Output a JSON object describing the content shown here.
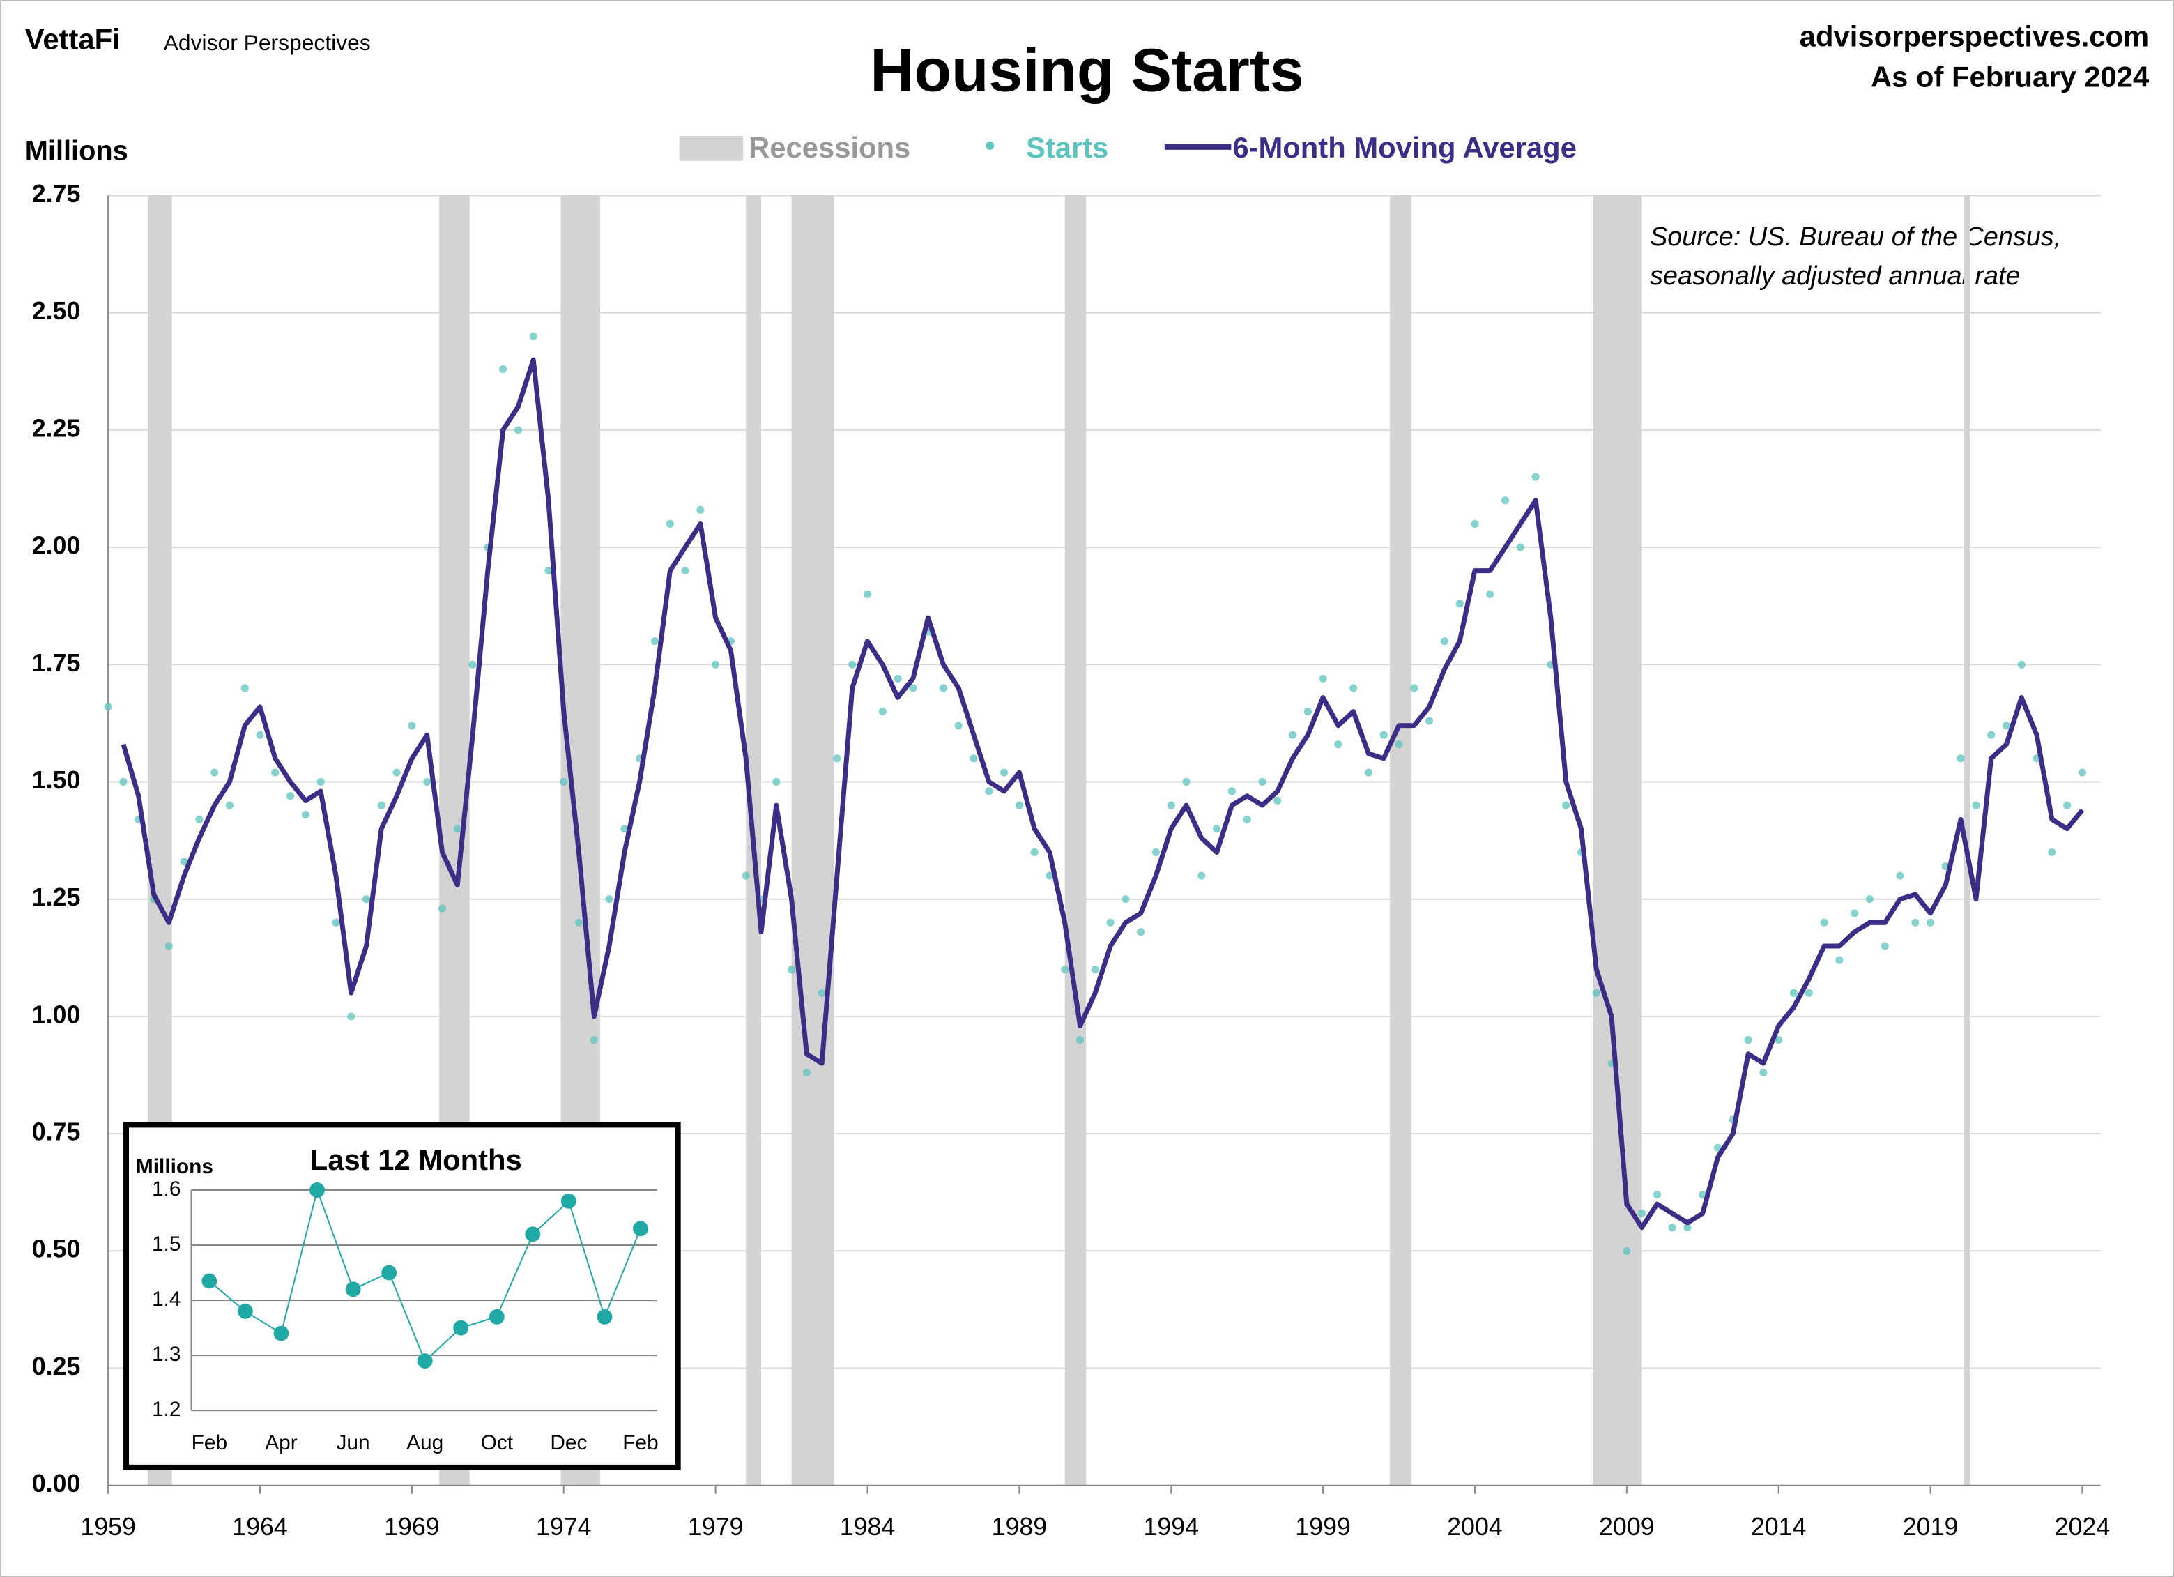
{
  "header": {
    "brand": "VettaFi",
    "brand_sub": "Advisor Perspectives",
    "site": "advisorperspectives.com",
    "as_of": "As of February 2024"
  },
  "chart_data": [
    {
      "type": "line",
      "title": "Housing Starts",
      "y_label": "Millions",
      "annotation": [
        "Source: US. Bureau of the Census,",
        "seasonally adjusted annual rate"
      ],
      "recessions_label": "Recessions",
      "recessions_color": "#d3d3d3",
      "recessions": [
        [
          1960.3,
          1961.1
        ],
        [
          1969.9,
          1970.9
        ],
        [
          1973.9,
          1975.2
        ],
        [
          1980.0,
          1980.5
        ],
        [
          1981.5,
          1982.9
        ],
        [
          1990.5,
          1991.2
        ],
        [
          2001.2,
          2001.9
        ],
        [
          2007.9,
          2009.5
        ],
        [
          2020.1,
          2020.3
        ]
      ],
      "xlim": [
        1959,
        2024.6
      ],
      "xticks": [
        1959,
        1964,
        1969,
        1974,
        1979,
        1984,
        1989,
        1994,
        1999,
        2004,
        2009,
        2014,
        2019,
        2024
      ],
      "ylim": [
        0,
        2.75
      ],
      "yticks": [
        {
          "value": 0,
          "label": "0.00"
        },
        0.25,
        {
          "value": 0.5,
          "label": "0.50"
        },
        0.75,
        {
          "value": 1,
          "label": "1.00"
        },
        1.25,
        {
          "value": 1.5,
          "label": "1.50"
        },
        1.75,
        {
          "value": 2,
          "label": "2.00"
        },
        2.25,
        {
          "value": 2.5,
          "label": "2.50"
        },
        2.75
      ],
      "grid": true,
      "x": [
        1959.0,
        1959.5,
        1960.0,
        1960.5,
        1961.0,
        1961.5,
        1962.0,
        1962.5,
        1963.0,
        1963.5,
        1964.0,
        1964.5,
        1965.0,
        1965.5,
        1966.0,
        1966.5,
        1967.0,
        1967.5,
        1968.0,
        1968.5,
        1969.0,
        1969.5,
        1970.0,
        1970.5,
        1971.0,
        1971.5,
        1972.0,
        1972.5,
        1973.0,
        1973.5,
        1974.0,
        1974.5,
        1975.0,
        1975.5,
        1976.0,
        1976.5,
        1977.0,
        1977.5,
        1978.0,
        1978.5,
        1979.0,
        1979.5,
        1980.0,
        1980.5,
        1981.0,
        1981.5,
        1982.0,
        1982.5,
        1983.0,
        1983.5,
        1984.0,
        1984.5,
        1985.0,
        1985.5,
        1986.0,
        1986.5,
        1987.0,
        1987.5,
        1988.0,
        1988.5,
        1989.0,
        1989.5,
        1990.0,
        1990.5,
        1991.0,
        1991.5,
        1992.0,
        1992.5,
        1993.0,
        1993.5,
        1994.0,
        1994.5,
        1995.0,
        1995.5,
        1996.0,
        1996.5,
        1997.0,
        1997.5,
        1998.0,
        1998.5,
        1999.0,
        1999.5,
        2000.0,
        2000.5,
        2001.0,
        2001.5,
        2002.0,
        2002.5,
        2003.0,
        2003.5,
        2004.0,
        2004.5,
        2005.0,
        2005.5,
        2006.0,
        2006.5,
        2007.0,
        2007.5,
        2008.0,
        2008.5,
        2009.0,
        2009.5,
        2010.0,
        2010.5,
        2011.0,
        2011.5,
        2012.0,
        2012.5,
        2013.0,
        2013.5,
        2014.0,
        2014.5,
        2015.0,
        2015.5,
        2016.0,
        2016.5,
        2017.0,
        2017.5,
        2018.0,
        2018.5,
        2019.0,
        2019.5,
        2020.0,
        2020.5,
        2021.0,
        2021.5,
        2022.0,
        2022.5,
        2023.0,
        2023.5,
        2024.0
      ],
      "series": [
        {
          "name": "Starts",
          "type": "scatter",
          "color": "#5cc3bf",
          "values": [
            1.66,
            1.5,
            1.42,
            1.25,
            1.15,
            1.33,
            1.42,
            1.52,
            1.45,
            1.7,
            1.6,
            1.52,
            1.47,
            1.43,
            1.5,
            1.2,
            1.0,
            1.25,
            1.45,
            1.52,
            1.62,
            1.5,
            1.23,
            1.4,
            1.75,
            2.0,
            2.38,
            2.25,
            2.45,
            1.95,
            1.5,
            1.2,
            0.95,
            1.25,
            1.4,
            1.55,
            1.8,
            2.05,
            1.95,
            2.08,
            1.75,
            1.8,
            1.3,
            1.25,
            1.5,
            1.1,
            0.88,
            1.05,
            1.55,
            1.75,
            1.9,
            1.65,
            1.72,
            1.7,
            1.82,
            1.7,
            1.62,
            1.55,
            1.48,
            1.52,
            1.45,
            1.35,
            1.3,
            1.1,
            0.95,
            1.1,
            1.2,
            1.25,
            1.18,
            1.35,
            1.45,
            1.5,
            1.3,
            1.4,
            1.48,
            1.42,
            1.5,
            1.46,
            1.6,
            1.65,
            1.72,
            1.58,
            1.7,
            1.52,
            1.6,
            1.58,
            1.7,
            1.63,
            1.8,
            1.88,
            2.05,
            1.9,
            2.1,
            2.0,
            2.15,
            1.75,
            1.45,
            1.35,
            1.05,
            0.9,
            0.5,
            0.58,
            0.62,
            0.55,
            0.55,
            0.62,
            0.72,
            0.78,
            0.95,
            0.88,
            0.95,
            1.05,
            1.05,
            1.2,
            1.12,
            1.22,
            1.25,
            1.15,
            1.3,
            1.2,
            1.2,
            1.32,
            1.55,
            1.45,
            1.6,
            1.62,
            1.75,
            1.55,
            1.35,
            1.45,
            1.52
          ]
        },
        {
          "name": "6-Month Moving Average",
          "type": "line",
          "color": "#3d2d86",
          "values": [
            null,
            1.58,
            1.47,
            1.26,
            1.2,
            1.3,
            1.38,
            1.45,
            1.5,
            1.62,
            1.66,
            1.55,
            1.5,
            1.46,
            1.48,
            1.3,
            1.05,
            1.15,
            1.4,
            1.47,
            1.55,
            1.6,
            1.35,
            1.28,
            1.6,
            1.95,
            2.25,
            2.3,
            2.4,
            2.1,
            1.65,
            1.35,
            1.0,
            1.15,
            1.35,
            1.5,
            1.7,
            1.95,
            2.0,
            2.05,
            1.85,
            1.78,
            1.55,
            1.18,
            1.45,
            1.25,
            0.92,
            0.9,
            1.3,
            1.7,
            1.8,
            1.75,
            1.68,
            1.72,
            1.85,
            1.75,
            1.7,
            1.6,
            1.5,
            1.48,
            1.52,
            1.4,
            1.35,
            1.2,
            0.98,
            1.05,
            1.15,
            1.2,
            1.22,
            1.3,
            1.4,
            1.45,
            1.38,
            1.35,
            1.45,
            1.47,
            1.45,
            1.48,
            1.55,
            1.6,
            1.68,
            1.62,
            1.65,
            1.56,
            1.55,
            1.62,
            1.62,
            1.66,
            1.74,
            1.8,
            1.95,
            1.95,
            2.0,
            2.05,
            2.1,
            1.85,
            1.5,
            1.4,
            1.1,
            1.0,
            0.6,
            0.55,
            0.6,
            0.58,
            0.56,
            0.58,
            0.7,
            0.75,
            0.92,
            0.9,
            0.98,
            1.02,
            1.08,
            1.15,
            1.15,
            1.18,
            1.2,
            1.2,
            1.25,
            1.26,
            1.22,
            1.28,
            1.42,
            1.25,
            1.55,
            1.58,
            1.68,
            1.6,
            1.42,
            1.4,
            1.44
          ]
        }
      ]
    },
    {
      "type": "line",
      "title": "Last 12 Months",
      "y_label": "Millions",
      "categories": [
        "Feb",
        null,
        "Apr",
        null,
        "Jun",
        null,
        "Aug",
        null,
        "Oct",
        null,
        "Dec",
        null,
        "Feb"
      ],
      "values": [
        1.435,
        1.38,
        1.34,
        1.6,
        1.42,
        1.45,
        1.29,
        1.35,
        1.37,
        1.52,
        1.58,
        1.37,
        1.53
      ],
      "color": "#1fa8a6",
      "ylim": [
        1.2,
        1.6
      ],
      "yticks": [
        1.2,
        1.3,
        1.4,
        1.5,
        1.6
      ],
      "grid": true
    }
  ]
}
